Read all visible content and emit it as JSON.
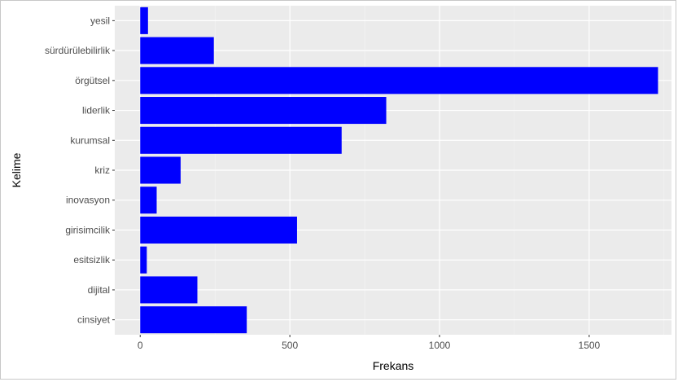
{
  "chart_data": {
    "type": "bar",
    "orientation": "horizontal",
    "title": "",
    "xlabel": "Frekans",
    "ylabel": "Kelime",
    "categories": [
      "yesil",
      "sürdürülebilirlik",
      "örgütsel",
      "liderlik",
      "kurumsal",
      "kriz",
      "inovasyon",
      "girisimcilik",
      "esitsizlik",
      "dijital",
      "cinsiyet"
    ],
    "values": [
      26,
      246,
      1730,
      822,
      673,
      135,
      55,
      524,
      22,
      191,
      356
    ],
    "xlim": [
      -85,
      1775
    ],
    "xticks": [
      0,
      500,
      1000,
      1500
    ],
    "grid": true,
    "legend": "none",
    "colors": {
      "bar": "#0000ff",
      "panel": "#ebebeb",
      "grid_major": "#ffffff",
      "grid_minor": "#f5f5f5"
    }
  }
}
